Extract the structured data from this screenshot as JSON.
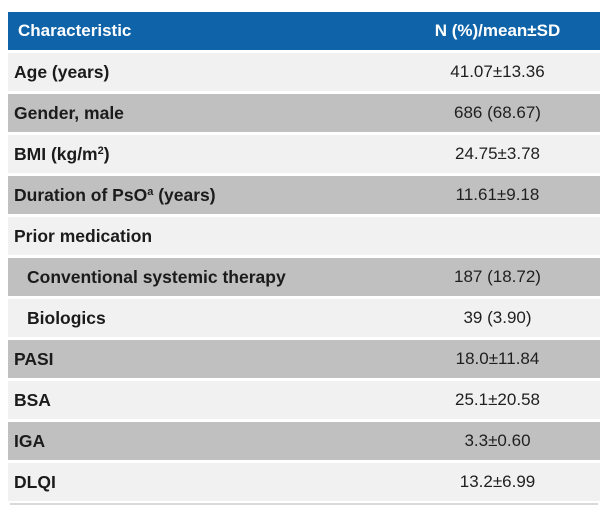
{
  "table": {
    "header": {
      "col1": "Characteristic",
      "col2": "N (%)/mean±SD"
    },
    "rows": [
      {
        "label_pre": "Age (years)",
        "label_sup": "",
        "label_post": "",
        "value": "41.07±13.36"
      },
      {
        "label_pre": "Gender, male",
        "label_sup": "",
        "label_post": "",
        "value": "686 (68.67)"
      },
      {
        "label_pre": "BMI (kg/m",
        "label_sup": "2",
        "label_post": ")",
        "value": "24.75±3.78"
      },
      {
        "label_pre": "Duration of PsO",
        "label_sup": "a",
        "label_post": " (years)",
        "value": "11.61±9.18"
      },
      {
        "label_pre": "Prior medication",
        "label_sup": "",
        "label_post": "",
        "value": ""
      },
      {
        "label_pre": "Conventional systemic therapy",
        "label_sup": "",
        "label_post": "",
        "value": "187 (18.72)"
      },
      {
        "label_pre": "Biologics",
        "label_sup": "",
        "label_post": "",
        "value": "39 (3.90)"
      },
      {
        "label_pre": "PASI",
        "label_sup": "",
        "label_post": "",
        "value": "18.0±11.84"
      },
      {
        "label_pre": "BSA",
        "label_sup": "",
        "label_post": "",
        "value": "25.1±20.58"
      },
      {
        "label_pre": "IGA",
        "label_sup": "",
        "label_post": "",
        "value": "3.3±0.60"
      },
      {
        "label_pre": "DLQI",
        "label_sup": "",
        "label_post": "",
        "value": "13.2±6.99"
      }
    ],
    "colors": {
      "header_bg": "#0e63a9",
      "header_text": "#ffffff",
      "row_gray": "#c0c0c0",
      "row_light": "#f1f1f2",
      "body_text": "#1b1b1b"
    }
  }
}
